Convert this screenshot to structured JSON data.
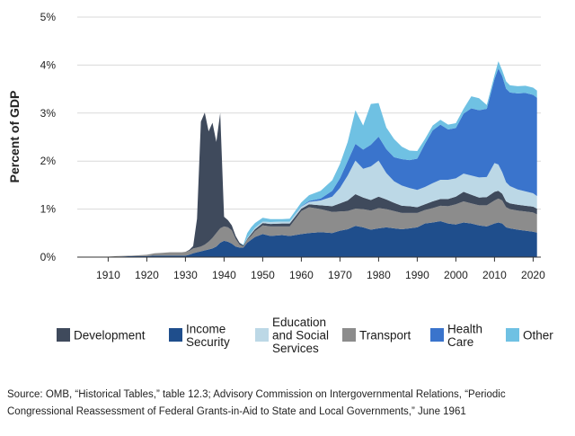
{
  "chart_data": {
    "type": "area",
    "stacked": true,
    "title": "",
    "xlabel": "",
    "ylabel": "Percent of GDP",
    "xlim": [
      1902,
      2022
    ],
    "ylim": [
      0,
      5
    ],
    "yticks": [
      "0%",
      "1%",
      "2%",
      "3%",
      "4%",
      "5%"
    ],
    "xticks": [
      "1910",
      "1920",
      "1930",
      "1940",
      "1950",
      "1960",
      "1970",
      "1980",
      "1990",
      "2000",
      "2010",
      "2020"
    ],
    "grid": true,
    "legend_position": "bottom",
    "x": [
      1902,
      1910,
      1912,
      1916,
      1920,
      1922,
      1924,
      1926,
      1928,
      1929,
      1930,
      1931,
      1932,
      1933,
      1934,
      1935,
      1936,
      1937,
      1938,
      1939,
      1940,
      1941,
      1942,
      1943,
      1944,
      1945,
      1946,
      1947,
      1948,
      1950,
      1952,
      1955,
      1957,
      1960,
      1962,
      1965,
      1968,
      1970,
      1972,
      1974,
      1976,
      1978,
      1980,
      1982,
      1984,
      1986,
      1988,
      1990,
      1992,
      1994,
      1996,
      1998,
      2000,
      2002,
      2004,
      2006,
      2008,
      2010,
      2011,
      2012,
      2013,
      2014,
      2016,
      2018,
      2020,
      2021
    ],
    "series": [
      {
        "name": "Income Security",
        "color": "#1f4e8c",
        "values": [
          0.0,
          0.01,
          0.01,
          0.02,
          0.02,
          0.03,
          0.03,
          0.03,
          0.03,
          0.03,
          0.03,
          0.05,
          0.08,
          0.1,
          0.12,
          0.14,
          0.16,
          0.18,
          0.22,
          0.3,
          0.34,
          0.32,
          0.28,
          0.22,
          0.2,
          0.2,
          0.3,
          0.36,
          0.42,
          0.48,
          0.44,
          0.46,
          0.44,
          0.48,
          0.5,
          0.52,
          0.5,
          0.55,
          0.58,
          0.65,
          0.62,
          0.57,
          0.6,
          0.62,
          0.6,
          0.58,
          0.6,
          0.62,
          0.7,
          0.72,
          0.75,
          0.7,
          0.68,
          0.72,
          0.7,
          0.66,
          0.64,
          0.7,
          0.72,
          0.7,
          0.62,
          0.6,
          0.57,
          0.55,
          0.53,
          0.51
        ]
      },
      {
        "name": "Transport",
        "color": "#8c8c8c",
        "values": [
          0.0,
          0.0,
          0.01,
          0.01,
          0.03,
          0.05,
          0.06,
          0.07,
          0.07,
          0.07,
          0.08,
          0.08,
          0.1,
          0.1,
          0.1,
          0.12,
          0.16,
          0.22,
          0.28,
          0.3,
          0.3,
          0.3,
          0.28,
          0.16,
          0.06,
          0.02,
          0.06,
          0.08,
          0.12,
          0.18,
          0.2,
          0.18,
          0.2,
          0.48,
          0.54,
          0.48,
          0.44,
          0.4,
          0.38,
          0.36,
          0.38,
          0.4,
          0.42,
          0.38,
          0.36,
          0.34,
          0.32,
          0.3,
          0.28,
          0.3,
          0.32,
          0.36,
          0.42,
          0.44,
          0.42,
          0.42,
          0.44,
          0.48,
          0.5,
          0.48,
          0.42,
          0.4,
          0.4,
          0.4,
          0.4,
          0.38
        ]
      },
      {
        "name": "Development",
        "color": "#3f4a5c",
        "values": [
          0.0,
          0.0,
          0.0,
          0.0,
          0.0,
          0.0,
          0.0,
          0.0,
          0.0,
          0.0,
          0.0,
          0.02,
          0.05,
          0.6,
          2.6,
          2.75,
          2.3,
          2.4,
          1.9,
          2.4,
          0.2,
          0.15,
          0.1,
          0.06,
          0.04,
          0.02,
          0.02,
          0.04,
          0.04,
          0.05,
          0.05,
          0.06,
          0.06,
          0.05,
          0.06,
          0.08,
          0.12,
          0.17,
          0.22,
          0.3,
          0.24,
          0.22,
          0.24,
          0.2,
          0.17,
          0.15,
          0.14,
          0.12,
          0.12,
          0.14,
          0.14,
          0.15,
          0.16,
          0.2,
          0.18,
          0.16,
          0.17,
          0.18,
          0.16,
          0.14,
          0.12,
          0.12,
          0.12,
          0.12,
          0.12,
          0.12
        ]
      },
      {
        "name": "Education and Social Services",
        "color": "#bcd8e6",
        "values": [
          0.0,
          0.0,
          0.0,
          0.0,
          0.0,
          0.0,
          0.0,
          0.0,
          0.0,
          0.0,
          0.0,
          0.0,
          0.0,
          0.0,
          0.0,
          0.0,
          0.0,
          0.0,
          0.0,
          0.0,
          0.0,
          0.0,
          0.0,
          0.0,
          0.0,
          0.0,
          0.02,
          0.02,
          0.03,
          0.03,
          0.04,
          0.04,
          0.04,
          0.04,
          0.05,
          0.1,
          0.2,
          0.32,
          0.52,
          0.7,
          0.6,
          0.7,
          0.75,
          0.55,
          0.45,
          0.42,
          0.38,
          0.36,
          0.36,
          0.38,
          0.4,
          0.4,
          0.38,
          0.38,
          0.4,
          0.42,
          0.42,
          0.6,
          0.55,
          0.45,
          0.4,
          0.36,
          0.32,
          0.3,
          0.28,
          0.26
        ]
      },
      {
        "name": "Health Care",
        "color": "#3a74cc",
        "values": [
          0.0,
          0.0,
          0.0,
          0.0,
          0.0,
          0.0,
          0.0,
          0.0,
          0.0,
          0.0,
          0.0,
          0.0,
          0.0,
          0.0,
          0.0,
          0.0,
          0.0,
          0.0,
          0.0,
          0.0,
          0.0,
          0.0,
          0.0,
          0.0,
          0.0,
          0.0,
          0.0,
          0.0,
          0.0,
          0.0,
          0.0,
          0.0,
          0.0,
          0.01,
          0.02,
          0.04,
          0.12,
          0.2,
          0.3,
          0.35,
          0.4,
          0.45,
          0.5,
          0.5,
          0.5,
          0.55,
          0.58,
          0.65,
          0.9,
          1.1,
          1.15,
          1.05,
          1.05,
          1.25,
          1.4,
          1.4,
          1.42,
          1.75,
          2.0,
          2.0,
          1.95,
          1.95,
          2.0,
          2.05,
          2.05,
          2.05
        ]
      },
      {
        "name": "Other",
        "color": "#6fc1e3",
        "values": [
          0.0,
          0.0,
          0.0,
          0.0,
          0.0,
          0.0,
          0.0,
          0.0,
          0.0,
          0.0,
          0.0,
          0.0,
          0.0,
          0.0,
          0.0,
          0.0,
          0.0,
          0.0,
          0.0,
          0.0,
          0.0,
          0.0,
          0.0,
          0.0,
          0.0,
          0.02,
          0.1,
          0.12,
          0.1,
          0.08,
          0.06,
          0.05,
          0.06,
          0.08,
          0.12,
          0.16,
          0.22,
          0.3,
          0.4,
          0.7,
          0.5,
          0.85,
          0.7,
          0.45,
          0.38,
          0.26,
          0.2,
          0.16,
          0.1,
          0.1,
          0.1,
          0.1,
          0.1,
          0.1,
          0.25,
          0.25,
          0.08,
          0.08,
          0.15,
          0.12,
          0.15,
          0.15,
          0.15,
          0.15,
          0.15,
          0.15
        ]
      }
    ]
  },
  "legend": {
    "items": [
      {
        "key": "development",
        "lines": [
          "Development"
        ],
        "color": "#3f4a5c"
      },
      {
        "key": "income-security",
        "lines": [
          "Income",
          "Security"
        ],
        "color": "#1f4e8c"
      },
      {
        "key": "education",
        "lines": [
          "Education",
          "and Social",
          "Services"
        ],
        "color": "#bcd8e6"
      },
      {
        "key": "transport",
        "lines": [
          "Transport"
        ],
        "color": "#8c8c8c"
      },
      {
        "key": "health-care",
        "lines": [
          "Health",
          "Care"
        ],
        "color": "#3a74cc"
      },
      {
        "key": "other",
        "lines": [
          "Other"
        ],
        "color": "#6fc1e3"
      }
    ]
  },
  "source": "Source: OMB, “Historical Tables,” table 12.3; Advisory Commission on Intergovernmental Relations, “Periodic Congressional Reassessment of Federal Grants-in-Aid to State and Local Governments,” June 1961"
}
